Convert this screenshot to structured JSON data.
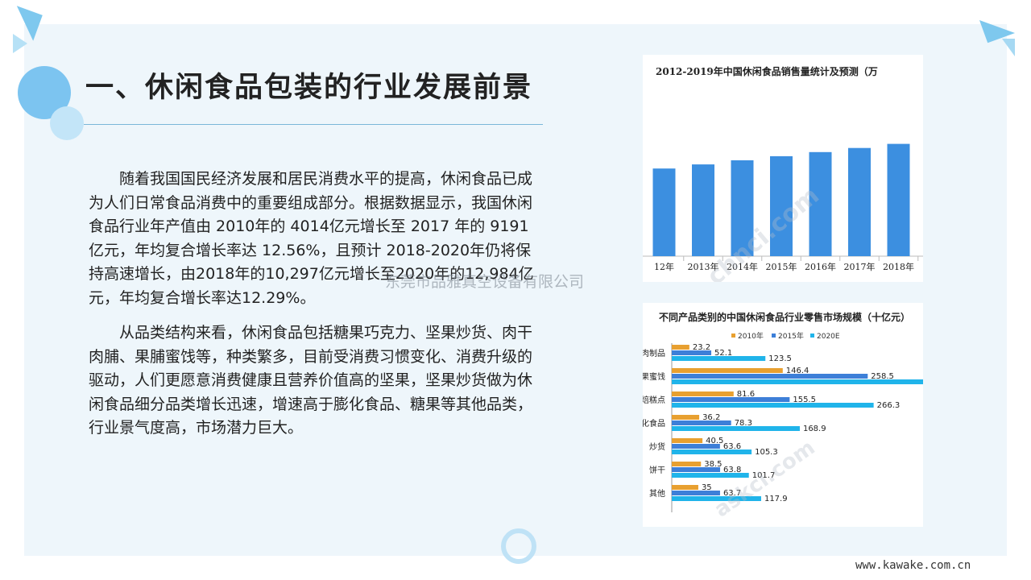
{
  "title": "一、休闲食品包装的行业发展前景",
  "paragraphs": [
    "随着我国国民经济发展和居民消费水平的提高，休闲食品已成为人们日常食品消费中的重要组成部分。根据数据显示，我国休闲食品行业年产值由 2010年的 4014亿元增长至 2017 年的 9191亿元，年均复合增长率达 12.56%，且预计 2018-2020年仍将保持高速增长，由2018年的10,297亿元增长至2020年的12,984亿元，年均复合增长率达12.29%。",
    "从品类结构来看，休闲食品包括糖果巧克力、坚果炒货、肉干肉脯、果脯蜜饯等，种类繁多，目前受消费习惯变化、消费升级的驱动，人们更愿意消费健康且营养价值高的坚果，坚果炒货做为休闲食品细分品类增长迅速，增速高于膨化食品、糖果等其他品类，行业景气度高，市场潜力巨大。"
  ],
  "watermark": "东莞市品雅真空设备有限公司",
  "site_url": "www.kawake.com.cn",
  "colors": {
    "bar_blue": "#3c8fe0",
    "orange": "#e8a030",
    "mid_blue": "#3d7fd8",
    "cyan": "#20b4ea"
  },
  "chart_data": [
    {
      "type": "bar",
      "title": "2012-2019年中国休闲食品销售量统计及预测（万",
      "categories": [
        "12年",
        "2013年",
        "2014年",
        "2015年",
        "2016年",
        "2017年",
        "2018年"
      ],
      "values": [
        64,
        67,
        70,
        73,
        76,
        79,
        82
      ],
      "ylim": [
        0,
        100
      ],
      "grid": false
    },
    {
      "type": "bar",
      "orientation": "horizontal",
      "title": "不同产品类别的中国休闲食品行业零售市场规模（十亿元）",
      "legend_position": "top",
      "categories": [
        "肉制品",
        "果蜜饯",
        "烘焙糕点",
        "膨化食品",
        "炒货",
        "饼干",
        "其他"
      ],
      "series": [
        {
          "name": "2010年",
          "values": [
            23.2,
            146.4,
            81.6,
            36.2,
            40.5,
            38.5,
            35
          ]
        },
        {
          "name": "2015年",
          "values": [
            52.1,
            258.5,
            155.5,
            78.3,
            63.6,
            63.8,
            63.7
          ]
        },
        {
          "name": "2020E",
          "values": [
            123.5,
            339,
            266.3,
            168.9,
            105.3,
            101.7,
            117.9
          ]
        }
      ],
      "data_labels": [
        [
          "23.2",
          "52.1",
          "123.5"
        ],
        [
          "146.4",
          "258.5",
          ""
        ],
        [
          "81.6",
          "155.5",
          "266.3"
        ],
        [
          "36.2",
          "78.3",
          "168.9"
        ],
        [
          "40.5",
          "63.6",
          "105.3"
        ],
        [
          "38.5",
          "63.8",
          "101.7"
        ],
        [
          "35",
          "63.7",
          "117.9"
        ]
      ],
      "xlim": [
        0,
        340
      ]
    }
  ]
}
